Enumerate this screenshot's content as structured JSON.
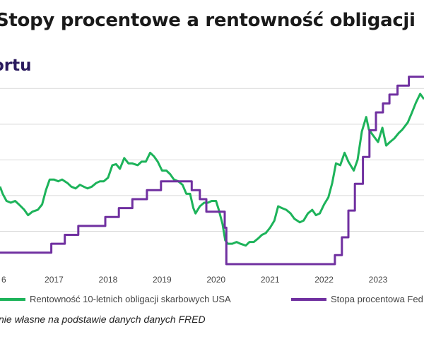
{
  "title": "Stopy procentowe a rentowność obligacji",
  "logo_text": "ortu",
  "source": "nie własne na podstawie danych danych FRED",
  "colors": {
    "series_yield": "#1db35a",
    "series_fed": "#7030a0",
    "grid": "#d9d9d9",
    "title": "#1a1a1a"
  },
  "chart_data": {
    "type": "line",
    "title": "Stopy procentowe a rentowność obligacji",
    "xlabel": "",
    "ylabel": "",
    "x_ticks": [
      "6",
      "2017",
      "2018",
      "2019",
      "2020",
      "2021",
      "2022",
      "2023"
    ],
    "xlim": [
      2016.0,
      2023.85
    ],
    "ylim": [
      0,
      5.5
    ],
    "grid": true,
    "legend_position": "bottom",
    "series": [
      {
        "name": "Rentowność 10-letnich obligacji skarbowych USA",
        "points": [
          [
            2016.0,
            2.25
          ],
          [
            2016.05,
            2.05
          ],
          [
            2016.12,
            1.85
          ],
          [
            2016.2,
            1.8
          ],
          [
            2016.28,
            1.85
          ],
          [
            2016.35,
            1.75
          ],
          [
            2016.45,
            1.6
          ],
          [
            2016.52,
            1.45
          ],
          [
            2016.6,
            1.55
          ],
          [
            2016.7,
            1.6
          ],
          [
            2016.78,
            1.75
          ],
          [
            2016.85,
            2.15
          ],
          [
            2016.92,
            2.45
          ],
          [
            2017.0,
            2.45
          ],
          [
            2017.08,
            2.4
          ],
          [
            2017.15,
            2.45
          ],
          [
            2017.25,
            2.35
          ],
          [
            2017.32,
            2.25
          ],
          [
            2017.4,
            2.2
          ],
          [
            2017.48,
            2.3
          ],
          [
            2017.55,
            2.25
          ],
          [
            2017.62,
            2.2
          ],
          [
            2017.7,
            2.25
          ],
          [
            2017.78,
            2.35
          ],
          [
            2017.85,
            2.4
          ],
          [
            2017.92,
            2.4
          ],
          [
            2018.0,
            2.5
          ],
          [
            2018.08,
            2.85
          ],
          [
            2018.15,
            2.88
          ],
          [
            2018.22,
            2.75
          ],
          [
            2018.3,
            3.05
          ],
          [
            2018.38,
            2.9
          ],
          [
            2018.45,
            2.9
          ],
          [
            2018.55,
            2.85
          ],
          [
            2018.62,
            2.95
          ],
          [
            2018.7,
            2.95
          ],
          [
            2018.78,
            3.2
          ],
          [
            2018.85,
            3.1
          ],
          [
            2018.92,
            2.95
          ],
          [
            2019.0,
            2.7
          ],
          [
            2019.08,
            2.7
          ],
          [
            2019.15,
            2.6
          ],
          [
            2019.22,
            2.45
          ],
          [
            2019.3,
            2.4
          ],
          [
            2019.38,
            2.3
          ],
          [
            2019.45,
            2.05
          ],
          [
            2019.52,
            2.05
          ],
          [
            2019.58,
            1.65
          ],
          [
            2019.62,
            1.5
          ],
          [
            2019.7,
            1.7
          ],
          [
            2019.78,
            1.8
          ],
          [
            2019.85,
            1.8
          ],
          [
            2019.92,
            1.85
          ],
          [
            2020.0,
            1.85
          ],
          [
            2020.05,
            1.6
          ],
          [
            2020.12,
            1.2
          ],
          [
            2020.17,
            0.75
          ],
          [
            2020.22,
            0.65
          ],
          [
            2020.3,
            0.65
          ],
          [
            2020.38,
            0.7
          ],
          [
            2020.45,
            0.65
          ],
          [
            2020.55,
            0.6
          ],
          [
            2020.62,
            0.7
          ],
          [
            2020.7,
            0.7
          ],
          [
            2020.78,
            0.8
          ],
          [
            2020.85,
            0.9
          ],
          [
            2020.92,
            0.95
          ],
          [
            2021.0,
            1.1
          ],
          [
            2021.08,
            1.3
          ],
          [
            2021.15,
            1.7
          ],
          [
            2021.22,
            1.65
          ],
          [
            2021.3,
            1.6
          ],
          [
            2021.38,
            1.5
          ],
          [
            2021.45,
            1.35
          ],
          [
            2021.55,
            1.25
          ],
          [
            2021.62,
            1.3
          ],
          [
            2021.7,
            1.5
          ],
          [
            2021.78,
            1.6
          ],
          [
            2021.85,
            1.45
          ],
          [
            2021.92,
            1.5
          ],
          [
            2022.0,
            1.75
          ],
          [
            2022.08,
            1.95
          ],
          [
            2022.15,
            2.35
          ],
          [
            2022.22,
            2.9
          ],
          [
            2022.3,
            2.85
          ],
          [
            2022.38,
            3.2
          ],
          [
            2022.45,
            2.95
          ],
          [
            2022.55,
            2.7
          ],
          [
            2022.62,
            3.0
          ],
          [
            2022.7,
            3.8
          ],
          [
            2022.78,
            4.2
          ],
          [
            2022.83,
            3.85
          ],
          [
            2022.9,
            3.7
          ],
          [
            2023.0,
            3.5
          ],
          [
            2023.08,
            3.9
          ],
          [
            2023.15,
            3.4
          ],
          [
            2023.22,
            3.5
          ],
          [
            2023.3,
            3.6
          ],
          [
            2023.38,
            3.75
          ],
          [
            2023.45,
            3.85
          ],
          [
            2023.55,
            4.05
          ],
          [
            2023.62,
            4.3
          ],
          [
            2023.7,
            4.6
          ],
          [
            2023.78,
            4.85
          ],
          [
            2023.85,
            4.7
          ]
        ]
      },
      {
        "name": "Stopa procentowa Fed",
        "points": [
          [
            2016.0,
            0.4
          ],
          [
            2016.95,
            0.4
          ],
          [
            2016.95,
            0.65
          ],
          [
            2017.2,
            0.65
          ],
          [
            2017.2,
            0.9
          ],
          [
            2017.45,
            0.9
          ],
          [
            2017.45,
            1.15
          ],
          [
            2017.95,
            1.15
          ],
          [
            2017.95,
            1.4
          ],
          [
            2018.2,
            1.4
          ],
          [
            2018.2,
            1.65
          ],
          [
            2018.45,
            1.65
          ],
          [
            2018.45,
            1.9
          ],
          [
            2018.72,
            1.9
          ],
          [
            2018.72,
            2.15
          ],
          [
            2018.98,
            2.15
          ],
          [
            2018.98,
            2.4
          ],
          [
            2019.55,
            2.4
          ],
          [
            2019.55,
            2.15
          ],
          [
            2019.7,
            2.15
          ],
          [
            2019.7,
            1.9
          ],
          [
            2019.82,
            1.9
          ],
          [
            2019.82,
            1.55
          ],
          [
            2020.16,
            1.55
          ],
          [
            2020.16,
            1.1
          ],
          [
            2020.19,
            1.1
          ],
          [
            2020.19,
            0.08
          ],
          [
            2022.2,
            0.08
          ],
          [
            2022.2,
            0.33
          ],
          [
            2022.33,
            0.33
          ],
          [
            2022.33,
            0.83
          ],
          [
            2022.45,
            0.83
          ],
          [
            2022.45,
            1.58
          ],
          [
            2022.57,
            1.58
          ],
          [
            2022.57,
            2.33
          ],
          [
            2022.72,
            2.33
          ],
          [
            2022.72,
            3.08
          ],
          [
            2022.84,
            3.08
          ],
          [
            2022.84,
            3.83
          ],
          [
            2022.96,
            3.83
          ],
          [
            2022.96,
            4.33
          ],
          [
            2023.09,
            4.33
          ],
          [
            2023.09,
            4.58
          ],
          [
            2023.21,
            4.58
          ],
          [
            2023.21,
            4.83
          ],
          [
            2023.36,
            4.83
          ],
          [
            2023.36,
            5.08
          ],
          [
            2023.57,
            5.08
          ],
          [
            2023.57,
            5.33
          ],
          [
            2023.85,
            5.33
          ]
        ]
      }
    ]
  }
}
